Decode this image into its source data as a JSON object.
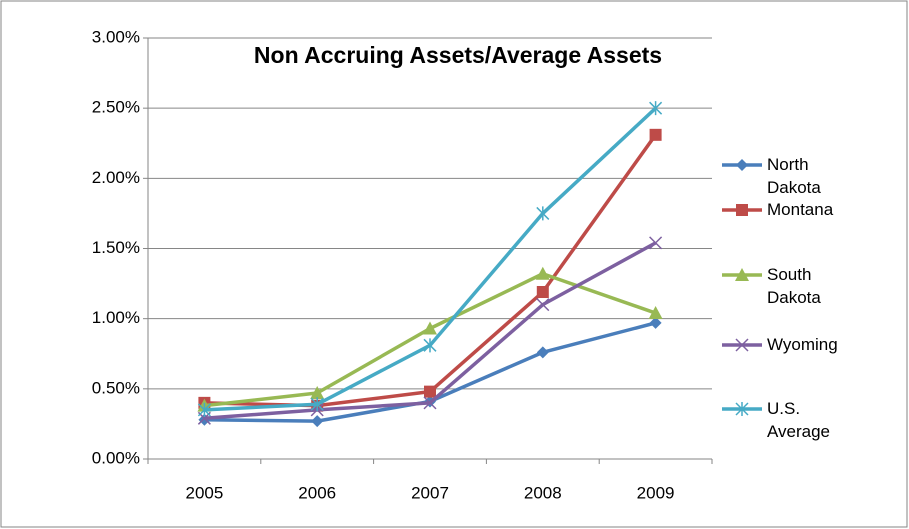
{
  "chart_data": {
    "type": "line",
    "title": "Non Accruing Assets/Average Assets",
    "categories": [
      "2005",
      "2006",
      "2007",
      "2008",
      "2009"
    ],
    "series": [
      {
        "name": "North Dakota",
        "color": "#4a7ebb",
        "marker": "diamond",
        "values": [
          0.28,
          0.27,
          0.41,
          0.76,
          0.97
        ]
      },
      {
        "name": "Montana",
        "color": "#be4b48",
        "marker": "square",
        "values": [
          0.4,
          0.38,
          0.48,
          1.19,
          2.31
        ]
      },
      {
        "name": "South Dakota",
        "color": "#98b954",
        "marker": "triangle",
        "values": [
          0.38,
          0.47,
          0.93,
          1.32,
          1.04
        ]
      },
      {
        "name": "Wyoming",
        "color": "#7d60a0",
        "marker": "x",
        "values": [
          0.29,
          0.35,
          0.4,
          1.1,
          1.54
        ]
      },
      {
        "name": "U.S. Average",
        "color": "#46aac5",
        "marker": "star",
        "values": [
          0.35,
          0.39,
          0.81,
          1.75,
          2.5
        ]
      }
    ],
    "ylim": [
      0,
      3
    ],
    "yticks": [
      {
        "value": 0,
        "label": "0.00%"
      },
      {
        "value": 0.5,
        "label": "0.50%"
      },
      {
        "value": 1,
        "label": "1.00%"
      },
      {
        "value": 1.5,
        "label": "1.50%"
      },
      {
        "value": 2,
        "label": "2.00%"
      },
      {
        "value": 2.5,
        "label": "2.50%"
      },
      {
        "value": 3,
        "label": "3.00%"
      }
    ],
    "grid": true,
    "legend": "right"
  }
}
